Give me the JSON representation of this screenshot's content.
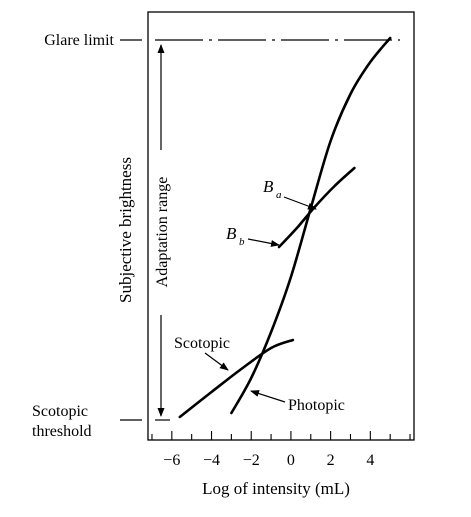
{
  "chart_data": {
    "type": "line",
    "xlabel": "Log of intensity (mL)",
    "ylabel": "Subjective brightness",
    "xlim": [
      -7.2,
      6.2
    ],
    "x_ticks": [
      -6,
      -4,
      -2,
      0,
      2,
      4
    ],
    "x_tick_labels": [
      "−6",
      "−4",
      "−2",
      "0",
      "2",
      "4"
    ],
    "grid": false,
    "legend": "none",
    "y_reference_levels": [
      {
        "label": "Glare limit",
        "style": "dash-dot"
      },
      {
        "label_line1": "Scotopic",
        "label_line2": "threshold"
      }
    ],
    "adaptation_range_label": "Adaptation range",
    "series": [
      {
        "name": "Photopic",
        "x": [
          -3,
          -2,
          -1,
          0,
          1,
          2,
          3,
          4,
          5
        ]
      },
      {
        "name": "Scotopic",
        "x": [
          -5.6,
          -4,
          -2.5,
          -1,
          0.1
        ]
      },
      {
        "name": "Ba"
      },
      {
        "name": "Bb",
        "x": [
          -0.6,
          0.3,
          1.2,
          2.2,
          3.2
        ]
      }
    ],
    "annotations": [
      {
        "text": "Scotopic",
        "target_series": "Scotopic"
      },
      {
        "text": "Photopic",
        "target_series": "Photopic"
      },
      {
        "text": "B",
        "subscript": "a",
        "target": "intersection of Photopic and Bb curve"
      },
      {
        "text": "B",
        "subscript": "b",
        "target_series": "Bb"
      }
    ]
  }
}
